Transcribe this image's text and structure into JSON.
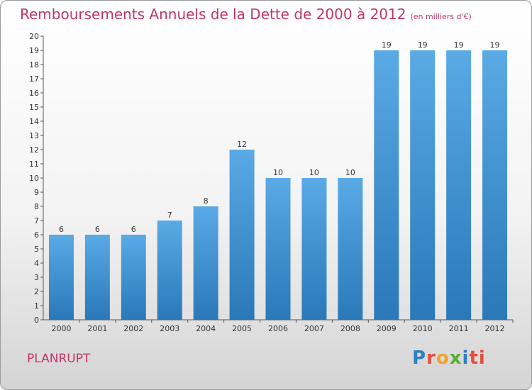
{
  "header": {
    "title": "Remboursements Annuels de la Dette de 2000 à 2012",
    "unit": "(en milliers d'€)"
  },
  "footer": {
    "commune": "PLANRUPT",
    "logo": [
      "P",
      "r",
      "o",
      "x",
      "i",
      "ti"
    ]
  },
  "chart_data": {
    "type": "bar",
    "title": "Remboursements Annuels de la Dette de 2000 à 2012",
    "subtitle": "(en milliers d'€)",
    "categories": [
      "2000",
      "2001",
      "2002",
      "2003",
      "2004",
      "2005",
      "2006",
      "2007",
      "2008",
      "2009",
      "2010",
      "2011",
      "2012"
    ],
    "values": [
      6,
      6,
      6,
      7,
      8,
      12,
      10,
      10,
      10,
      19,
      19,
      19,
      19
    ],
    "ylim": [
      0,
      20
    ],
    "yticks": [
      0,
      1,
      2,
      3,
      4,
      5,
      6,
      7,
      8,
      9,
      10,
      11,
      12,
      13,
      14,
      15,
      16,
      17,
      18,
      19,
      20
    ],
    "grid": false,
    "colors": {
      "bar_top": "#5aaae6",
      "bar_bottom": "#2a78b8",
      "title": "#c0356a",
      "axis": "#555555"
    }
  }
}
